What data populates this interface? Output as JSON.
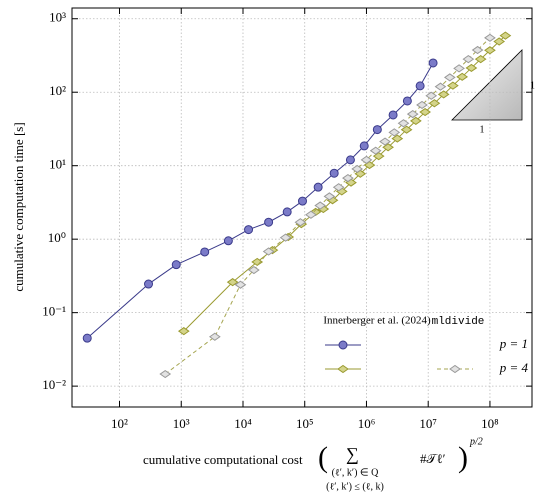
{
  "chart_data": {
    "type": "line",
    "log_x": true,
    "log_y": true,
    "grid": true,
    "xlim": [
      17,
      480000000
    ],
    "ylim": [
      0.0052,
      1400
    ],
    "xticks": [
      {
        "value": 100,
        "label": "10²"
      },
      {
        "value": 1000,
        "label": "10³"
      },
      {
        "value": 10000,
        "label": "10⁴"
      },
      {
        "value": 100000,
        "label": "10⁵"
      },
      {
        "value": 1000000,
        "label": "10⁶"
      },
      {
        "value": 10000000,
        "label": "10⁷"
      },
      {
        "value": 100000000,
        "label": "10⁸"
      }
    ],
    "yticks": [
      {
        "value": 0.01,
        "label": "10⁻²"
      },
      {
        "value": 0.1,
        "label": "10⁻¹"
      },
      {
        "value": 1,
        "label": "10⁰"
      },
      {
        "value": 10,
        "label": "10¹"
      },
      {
        "value": 100,
        "label": "10²"
      },
      {
        "value": 1000,
        "label": "10³"
      }
    ],
    "ylabel": "cumulative computation time [s]",
    "xlabel": {
      "text": "cumulative computational cost",
      "sum": "∑",
      "sub1": "(ℓ′, k′) ∈ Q",
      "sub2": "(ℓ′, k′) ≤ (ℓ, k)",
      "term": "#𝒯ℓ′",
      "exponent": "p/2"
    },
    "legend": {
      "columns": [
        "Innerberger et al. (2024)",
        "mldivide"
      ],
      "rows": [
        "p = 1",
        "p = 4"
      ]
    },
    "slope_triangle": {
      "vertical": "1",
      "horizontal": "1"
    },
    "series": [
      {
        "color": "#3a3a8a",
        "fill": "#7b7bc8",
        "marker": "circle",
        "dash": false,
        "x": [
          30,
          295,
          830,
          2400,
          5800,
          12300,
          26000,
          52000,
          92000,
          165000,
          300000,
          550000,
          920000,
          1500000,
          2700000,
          4600000,
          7400000,
          12000000
        ],
        "values": [
          0.045,
          0.245,
          0.45,
          0.67,
          0.95,
          1.35,
          1.7,
          2.35,
          3.3,
          5.1,
          7.9,
          12,
          18.6,
          31,
          49,
          76,
          122,
          250
        ]
      },
      {
        "color": "#9a9a30",
        "fill": "#d4d48a",
        "marker": "diamond",
        "dash": false,
        "x": [
          1100,
          6800,
          17000,
          30000,
          54000,
          88000,
          150000,
          200000,
          282000,
          398000,
          562000,
          794000,
          1120000,
          1580000,
          2240000,
          3160000,
          4470000,
          6310000,
          8910000,
          12600000,
          17800000,
          25100000,
          35500000,
          50100000,
          70800000,
          100000000,
          141000000,
          178000000
        ],
        "values": [
          0.056,
          0.26,
          0.49,
          0.71,
          1.07,
          1.6,
          2.35,
          2.57,
          3.39,
          4.47,
          5.89,
          7.76,
          10.2,
          13.5,
          17.8,
          23.4,
          30.9,
          40.7,
          53.7,
          70.8,
          93.3,
          123,
          162,
          214,
          282,
          372,
          490,
          589
        ]
      },
      {
        "color": "#a5a550",
        "fill": "#e2e2e2",
        "marker": "diamond",
        "dash": true,
        "marker_stroke": "#999999",
        "x": [
          550,
          3500,
          9100,
          15000,
          26000,
          49000,
          85000,
          126000,
          178000,
          251000,
          355000,
          501000,
          708000,
          1000000,
          1410000,
          2000000,
          2820000,
          3980000,
          5620000,
          7940000,
          11200000,
          15800000,
          22400000,
          31600000,
          44700000,
          63100000,
          100000000
        ],
        "values": [
          0.0146,
          0.047,
          0.24,
          0.38,
          0.68,
          1.05,
          1.7,
          2.15,
          2.87,
          3.82,
          5.09,
          6.78,
          9.03,
          12.0,
          16.0,
          21.3,
          28.4,
          37.8,
          50.4,
          67.1,
          89.5,
          119,
          159,
          211,
          282,
          375,
          550
        ]
      }
    ]
  }
}
